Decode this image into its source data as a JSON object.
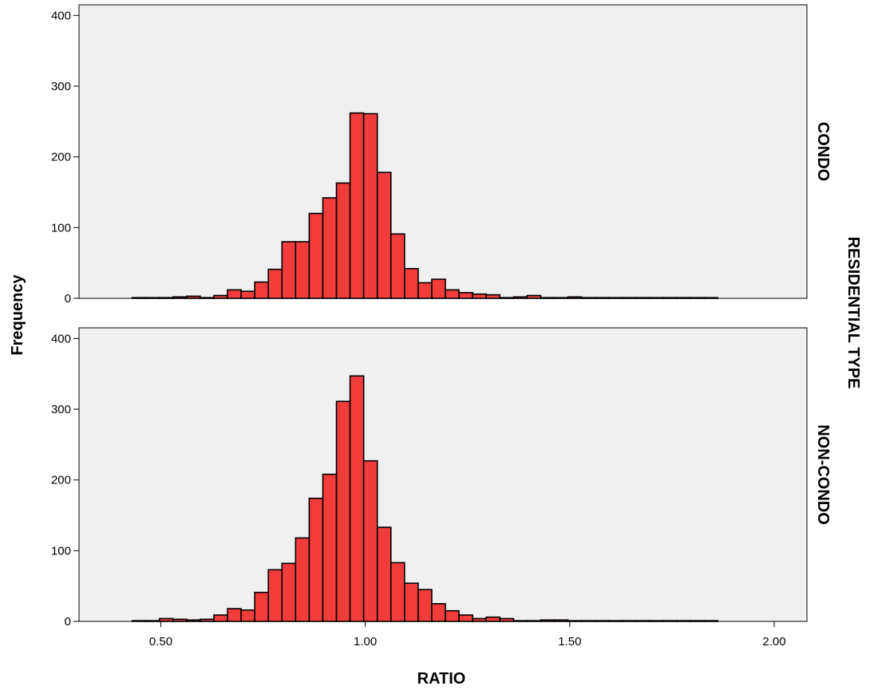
{
  "chart_data": {
    "type": "bar",
    "subtype": "histogram",
    "xlabel": "RATIO",
    "ylabel": "Frequency",
    "facet_label": "RESIDENTIAL TYPE",
    "x_ticks": [
      0.5,
      1.0,
      1.5,
      2.0
    ],
    "x_tick_labels": [
      "0.50",
      "1.00",
      "1.50",
      "2.00"
    ],
    "xlim": [
      0.3,
      2.08
    ],
    "y_ticks": [
      0,
      100,
      200,
      300,
      400
    ],
    "y_tick_labels": [
      "0",
      "100",
      "200",
      "300",
      "400"
    ],
    "ylim": [
      0,
      415
    ],
    "bin_start": 0.43,
    "bin_width": 0.0333,
    "panel_background": "#f0f0f0",
    "bar_color": "#f23c3c",
    "bar_edge": "#000000",
    "grid": false,
    "panels": [
      {
        "name": "CONDO",
        "values": [
          1,
          1,
          1,
          2,
          3,
          1,
          4,
          12,
          10,
          23,
          41,
          80,
          80,
          120,
          142,
          163,
          262,
          261,
          178,
          91,
          42,
          22,
          27,
          12,
          8,
          6,
          5,
          1,
          2,
          4,
          1,
          1,
          2,
          1,
          1,
          1,
          1,
          1,
          1,
          1,
          1,
          1,
          1
        ]
      },
      {
        "name": "NON-CONDO",
        "values": [
          1,
          1,
          4,
          3,
          2,
          3,
          9,
          18,
          16,
          41,
          73,
          82,
          118,
          174,
          208,
          311,
          347,
          227,
          133,
          83,
          54,
          45,
          25,
          15,
          9,
          4,
          6,
          4,
          1,
          1,
          2,
          2,
          1,
          1,
          1,
          1,
          1,
          1,
          1,
          1,
          1,
          1,
          1
        ]
      }
    ]
  }
}
